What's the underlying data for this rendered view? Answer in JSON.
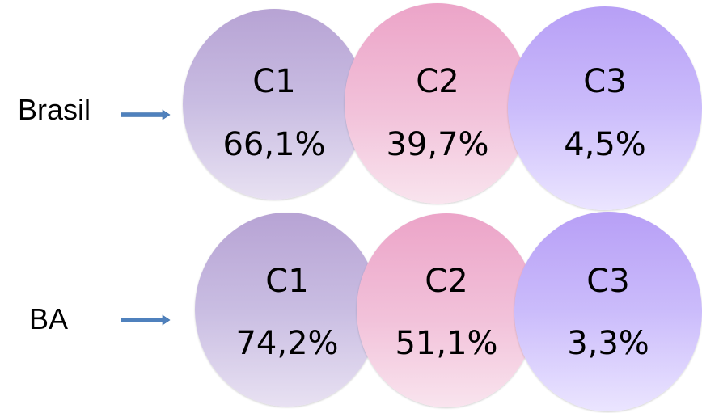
{
  "rows": [
    {
      "label": "Brasil",
      "circles": [
        {
          "code": "C1",
          "value": "66,1%"
        },
        {
          "code": "C2",
          "value": "39,7%"
        },
        {
          "code": "C3",
          "value": "4,5%"
        }
      ]
    },
    {
      "label": "BA",
      "circles": [
        {
          "code": "C1",
          "value": "74,2%"
        },
        {
          "code": "C2",
          "value": "51,1%"
        },
        {
          "code": "C3",
          "value": "3,3%"
        }
      ]
    }
  ],
  "colors": {
    "c1": "#c9bde2",
    "c2": "#f2c2da",
    "c3": "#cbbcfb",
    "arrow": "#4f81bd"
  }
}
